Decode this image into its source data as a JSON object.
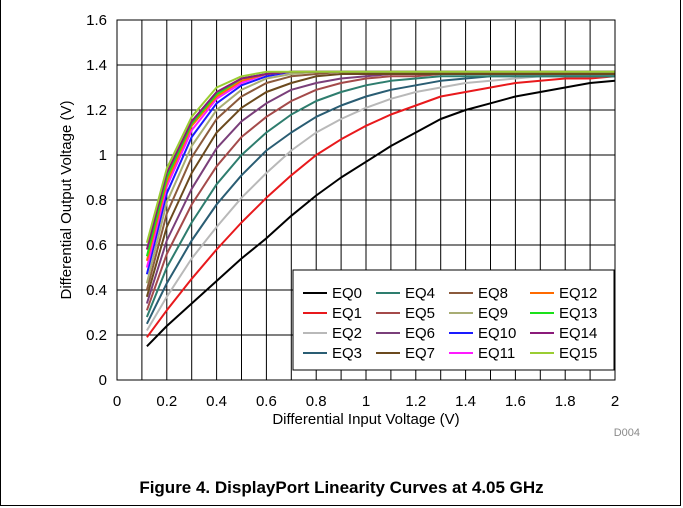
{
  "caption": "Figure 4. DisplayPort Linearity Curves at 4.05 GHz",
  "figure_id": "D004",
  "chart_data": {
    "type": "line",
    "title": "",
    "xlabel": "Differential Input Voltage (V)",
    "ylabel": "Differential Output Voltage (V)",
    "xlim": [
      0,
      2
    ],
    "ylim": [
      0,
      1.6
    ],
    "x_ticks": [
      "0",
      "0.2",
      "0.4",
      "0.6",
      "0.8",
      "1",
      "1.2",
      "1.4",
      "1.6",
      "1.8",
      "2"
    ],
    "y_ticks": [
      "0",
      "0.2",
      "0.4",
      "0.6",
      "0.8",
      "1",
      "1.2",
      "1.4",
      "1.6"
    ],
    "grid": true,
    "legend_position": "bottom-right",
    "series": [
      {
        "name": "EQ0",
        "color": "#000000",
        "x": [
          0.12,
          0.2,
          0.3,
          0.4,
          0.5,
          0.6,
          0.7,
          0.8,
          0.9,
          1.0,
          1.1,
          1.2,
          1.3,
          1.4,
          1.5,
          1.6,
          1.7,
          1.8,
          1.9,
          2.0
        ],
        "y": [
          0.15,
          0.24,
          0.34,
          0.44,
          0.54,
          0.63,
          0.73,
          0.82,
          0.9,
          0.97,
          1.04,
          1.1,
          1.16,
          1.2,
          1.23,
          1.26,
          1.28,
          1.3,
          1.32,
          1.33
        ]
      },
      {
        "name": "EQ1",
        "color": "#e8191c",
        "x": [
          0.12,
          0.2,
          0.3,
          0.4,
          0.5,
          0.6,
          0.7,
          0.8,
          0.9,
          1.0,
          1.1,
          1.2,
          1.3,
          1.4,
          1.5,
          1.6,
          1.7,
          1.8,
          1.9,
          2.0
        ],
        "y": [
          0.19,
          0.31,
          0.45,
          0.58,
          0.7,
          0.81,
          0.91,
          1.0,
          1.07,
          1.13,
          1.18,
          1.22,
          1.26,
          1.28,
          1.3,
          1.32,
          1.33,
          1.34,
          1.34,
          1.35
        ]
      },
      {
        "name": "EQ2",
        "color": "#b9b9b9",
        "x": [
          0.12,
          0.2,
          0.3,
          0.4,
          0.5,
          0.6,
          0.7,
          0.8,
          0.9,
          1.0,
          1.1,
          1.2,
          1.3,
          1.4,
          1.5,
          1.6,
          1.7,
          1.8,
          1.9,
          2.0
        ],
        "y": [
          0.22,
          0.37,
          0.54,
          0.68,
          0.81,
          0.92,
          1.02,
          1.1,
          1.16,
          1.21,
          1.25,
          1.28,
          1.3,
          1.32,
          1.33,
          1.34,
          1.35,
          1.35,
          1.35,
          1.35
        ]
      },
      {
        "name": "EQ3",
        "color": "#2a5d73",
        "x": [
          0.12,
          0.2,
          0.3,
          0.4,
          0.5,
          0.6,
          0.7,
          0.8,
          0.9,
          1.0,
          1.1,
          1.2,
          1.3,
          1.4,
          1.5,
          1.6,
          1.7,
          1.8,
          1.9,
          2.0
        ],
        "y": [
          0.25,
          0.43,
          0.62,
          0.78,
          0.91,
          1.02,
          1.1,
          1.17,
          1.22,
          1.26,
          1.29,
          1.31,
          1.33,
          1.34,
          1.35,
          1.35,
          1.35,
          1.35,
          1.35,
          1.35
        ]
      },
      {
        "name": "EQ4",
        "color": "#2e7d6e",
        "x": [
          0.12,
          0.2,
          0.3,
          0.4,
          0.5,
          0.6,
          0.7,
          0.8,
          0.9,
          1.0,
          1.1,
          1.2,
          1.3,
          1.4,
          1.5,
          1.6,
          1.7,
          1.8,
          1.9,
          2.0
        ],
        "y": [
          0.28,
          0.5,
          0.7,
          0.87,
          1.0,
          1.1,
          1.18,
          1.24,
          1.28,
          1.31,
          1.33,
          1.34,
          1.35,
          1.35,
          1.35,
          1.35,
          1.35,
          1.35,
          1.35,
          1.35
        ]
      },
      {
        "name": "EQ5",
        "color": "#a44a4a",
        "x": [
          0.12,
          0.2,
          0.3,
          0.4,
          0.5,
          0.6,
          0.7,
          0.8,
          0.9,
          1.0,
          1.1,
          1.2,
          1.3,
          1.4,
          1.5,
          1.6,
          1.7,
          1.8,
          1.9,
          2.0
        ],
        "y": [
          0.31,
          0.56,
          0.78,
          0.95,
          1.08,
          1.17,
          1.24,
          1.29,
          1.32,
          1.34,
          1.35,
          1.35,
          1.36,
          1.36,
          1.36,
          1.36,
          1.36,
          1.36,
          1.36,
          1.36
        ]
      },
      {
        "name": "EQ6",
        "color": "#7a3f7a",
        "x": [
          0.12,
          0.2,
          0.3,
          0.4,
          0.5,
          0.6,
          0.7,
          0.8,
          0.9,
          1.0,
          1.1,
          1.2,
          1.3,
          1.4,
          1.5,
          1.6,
          1.7,
          1.8,
          1.9,
          2.0
        ],
        "y": [
          0.34,
          0.62,
          0.85,
          1.03,
          1.15,
          1.23,
          1.29,
          1.32,
          1.34,
          1.35,
          1.36,
          1.36,
          1.36,
          1.36,
          1.36,
          1.36,
          1.36,
          1.36,
          1.36,
          1.36
        ]
      },
      {
        "name": "EQ7",
        "color": "#6b4a1e",
        "x": [
          0.12,
          0.2,
          0.3,
          0.4,
          0.5,
          0.6,
          0.7,
          0.8,
          0.9,
          1.0,
          1.1,
          1.2,
          1.3,
          1.4,
          1.5,
          1.6,
          1.7,
          1.8,
          1.9,
          2.0
        ],
        "y": [
          0.37,
          0.68,
          0.92,
          1.1,
          1.21,
          1.28,
          1.32,
          1.35,
          1.36,
          1.36,
          1.36,
          1.36,
          1.36,
          1.36,
          1.36,
          1.36,
          1.36,
          1.36,
          1.36,
          1.36
        ]
      },
      {
        "name": "EQ8",
        "color": "#8b5a3c",
        "x": [
          0.12,
          0.2,
          0.3,
          0.4,
          0.5,
          0.6,
          0.7,
          0.8,
          0.9,
          1.0,
          1.1,
          1.2,
          1.3,
          1.4,
          1.5,
          1.6,
          1.7,
          1.8,
          1.9,
          2.0
        ],
        "y": [
          0.4,
          0.74,
          0.99,
          1.16,
          1.26,
          1.32,
          1.35,
          1.36,
          1.37,
          1.37,
          1.37,
          1.37,
          1.37,
          1.37,
          1.37,
          1.37,
          1.37,
          1.37,
          1.37,
          1.37
        ]
      },
      {
        "name": "EQ9",
        "color": "#a8ad74",
        "x": [
          0.12,
          0.2,
          0.3,
          0.4,
          0.5,
          0.6,
          0.7,
          0.8,
          0.9,
          1.0,
          1.1,
          1.2,
          1.3,
          1.4,
          1.5,
          1.6,
          1.7,
          1.8,
          1.9,
          2.0
        ],
        "y": [
          0.43,
          0.79,
          1.04,
          1.2,
          1.29,
          1.34,
          1.36,
          1.37,
          1.37,
          1.37,
          1.37,
          1.37,
          1.37,
          1.37,
          1.37,
          1.37,
          1.37,
          1.37,
          1.37,
          1.37
        ]
      },
      {
        "name": "EQ10",
        "color": "#1a1aff",
        "x": [
          0.12,
          0.2,
          0.3,
          0.4,
          0.5,
          0.6,
          0.7,
          0.8,
          0.9,
          1.0,
          1.1,
          1.2,
          1.3,
          1.4,
          1.5,
          1.6,
          1.7,
          1.8,
          1.9,
          2.0
        ],
        "y": [
          0.47,
          0.83,
          1.08,
          1.23,
          1.31,
          1.35,
          1.37,
          1.37,
          1.37,
          1.37,
          1.37,
          1.37,
          1.37,
          1.37,
          1.37,
          1.37,
          1.37,
          1.37,
          1.37,
          1.37
        ]
      },
      {
        "name": "EQ11",
        "color": "#ff1aff",
        "x": [
          0.12,
          0.2,
          0.3,
          0.4,
          0.5,
          0.6,
          0.7,
          0.8,
          0.9,
          1.0,
          1.1,
          1.2,
          1.3,
          1.4,
          1.5,
          1.6,
          1.7,
          1.8,
          1.9,
          2.0
        ],
        "y": [
          0.5,
          0.86,
          1.11,
          1.25,
          1.32,
          1.36,
          1.37,
          1.37,
          1.37,
          1.37,
          1.37,
          1.37,
          1.37,
          1.37,
          1.37,
          1.37,
          1.37,
          1.37,
          1.37,
          1.37
        ]
      },
      {
        "name": "EQ12",
        "color": "#ff6a00",
        "x": [
          0.12,
          0.2,
          0.3,
          0.4,
          0.5,
          0.6,
          0.7,
          0.8,
          0.9,
          1.0,
          1.1,
          1.2,
          1.3,
          1.4,
          1.5,
          1.6,
          1.7,
          1.8,
          1.9,
          2.0
        ],
        "y": [
          0.53,
          0.88,
          1.13,
          1.26,
          1.33,
          1.36,
          1.37,
          1.37,
          1.37,
          1.37,
          1.37,
          1.37,
          1.37,
          1.37,
          1.37,
          1.37,
          1.37,
          1.37,
          1.37,
          1.37
        ]
      },
      {
        "name": "EQ13",
        "color": "#1ae11a",
        "x": [
          0.12,
          0.2,
          0.3,
          0.4,
          0.5,
          0.6,
          0.7,
          0.8,
          0.9,
          1.0,
          1.1,
          1.2,
          1.3,
          1.4,
          1.5,
          1.6,
          1.7,
          1.8,
          1.9,
          2.0
        ],
        "y": [
          0.55,
          0.9,
          1.14,
          1.27,
          1.34,
          1.36,
          1.37,
          1.37,
          1.37,
          1.37,
          1.37,
          1.37,
          1.37,
          1.37,
          1.37,
          1.37,
          1.37,
          1.37,
          1.37,
          1.37
        ]
      },
      {
        "name": "EQ14",
        "color": "#8b1a7a",
        "x": [
          0.12,
          0.2,
          0.3,
          0.4,
          0.5,
          0.6,
          0.7,
          0.8,
          0.9,
          1.0,
          1.1,
          1.2,
          1.3,
          1.4,
          1.5,
          1.6,
          1.7,
          1.8,
          1.9,
          2.0
        ],
        "y": [
          0.58,
          0.92,
          1.15,
          1.28,
          1.34,
          1.36,
          1.37,
          1.37,
          1.37,
          1.37,
          1.37,
          1.37,
          1.37,
          1.37,
          1.37,
          1.37,
          1.37,
          1.37,
          1.37,
          1.37
        ]
      },
      {
        "name": "EQ15",
        "color": "#9acd32",
        "x": [
          0.12,
          0.2,
          0.3,
          0.4,
          0.5,
          0.6,
          0.7,
          0.8,
          0.9,
          1.0,
          1.1,
          1.2,
          1.3,
          1.4,
          1.5,
          1.6,
          1.7,
          1.8,
          1.9,
          2.0
        ],
        "y": [
          0.61,
          0.94,
          1.17,
          1.3,
          1.35,
          1.37,
          1.37,
          1.37,
          1.37,
          1.37,
          1.37,
          1.37,
          1.37,
          1.37,
          1.37,
          1.37,
          1.37,
          1.37,
          1.37,
          1.37
        ]
      }
    ]
  }
}
